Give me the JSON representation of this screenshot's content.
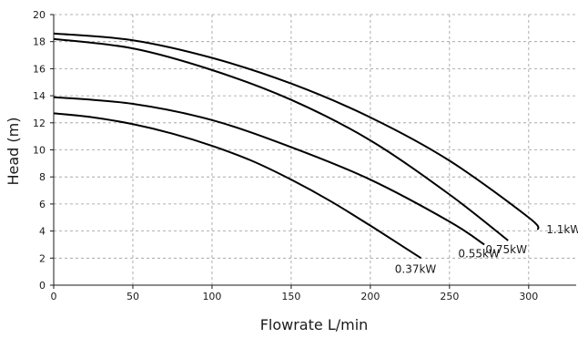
{
  "chart_data": {
    "type": "line",
    "title": "",
    "xlabel": "Flowrate L/min",
    "ylabel": "Head (m)",
    "xlim": [
      0,
      330
    ],
    "ylim": [
      0,
      20
    ],
    "x_ticks": [
      0,
      50,
      100,
      150,
      200,
      250,
      300
    ],
    "y_ticks": [
      0,
      2,
      4,
      6,
      8,
      10,
      12,
      14,
      16,
      18,
      20
    ],
    "grid": true,
    "legend": "none",
    "series": [
      {
        "name": "0.37kW",
        "x": [
          0,
          25,
          50,
          75,
          100,
          125,
          150,
          175,
          200,
          220,
          232
        ],
        "y": [
          12.7,
          12.4,
          11.9,
          11.2,
          10.3,
          9.2,
          7.8,
          6.2,
          4.4,
          2.9,
          2.0
        ]
      },
      {
        "name": "0.55kW",
        "x": [
          0,
          50,
          100,
          150,
          200,
          250,
          272
        ],
        "y": [
          13.9,
          13.4,
          12.2,
          10.2,
          7.8,
          4.7,
          3.0
        ]
      },
      {
        "name": "0.75kW",
        "x": [
          0,
          50,
          100,
          150,
          200,
          250,
          287
        ],
        "y": [
          18.2,
          17.5,
          15.9,
          13.7,
          10.7,
          6.7,
          3.3
        ]
      },
      {
        "name": "1.1kW",
        "x": [
          0,
          50,
          100,
          150,
          200,
          250,
          300,
          306
        ],
        "y": [
          18.6,
          18.1,
          16.8,
          14.9,
          12.4,
          9.2,
          5.0,
          4.1
        ]
      }
    ]
  }
}
